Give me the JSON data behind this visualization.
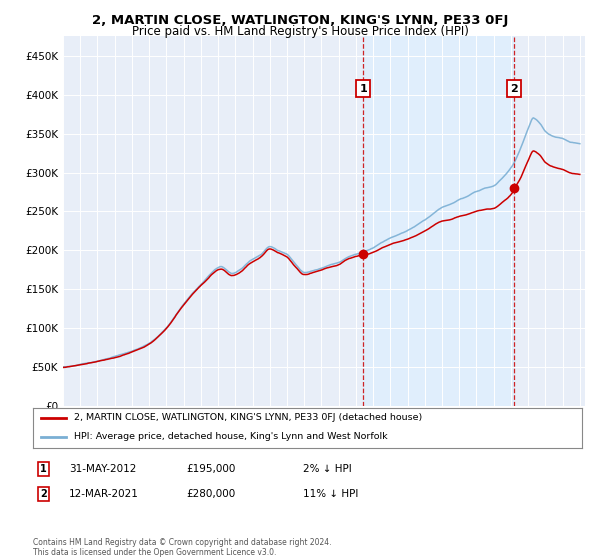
{
  "title": "2, MARTIN CLOSE, WATLINGTON, KING'S LYNN, PE33 0FJ",
  "subtitle": "Price paid vs. HM Land Registry's House Price Index (HPI)",
  "legend_line1": "2, MARTIN CLOSE, WATLINGTON, KING'S LYNN, PE33 0FJ (detached house)",
  "legend_line2": "HPI: Average price, detached house, King's Lynn and West Norfolk",
  "annotation1_date": "31-MAY-2012",
  "annotation1_price": "£195,000",
  "annotation1_hpi": "2% ↓ HPI",
  "annotation1_year": 2012.42,
  "annotation1_value": 195000,
  "annotation2_date": "12-MAR-2021",
  "annotation2_price": "£280,000",
  "annotation2_hpi": "11% ↓ HPI",
  "annotation2_year": 2021.19,
  "annotation2_value": 280000,
  "footer": "Contains HM Land Registry data © Crown copyright and database right 2024.\nThis data is licensed under the Open Government Licence v3.0.",
  "hpi_color": "#7aafd4",
  "price_color": "#cc0000",
  "vline_color": "#cc0000",
  "shade_color": "#ddeeff",
  "plot_bg": "#e8eef8",
  "ylim": [
    0,
    475000
  ],
  "yticks": [
    0,
    50000,
    100000,
    150000,
    200000,
    250000,
    300000,
    350000,
    400000,
    450000
  ]
}
